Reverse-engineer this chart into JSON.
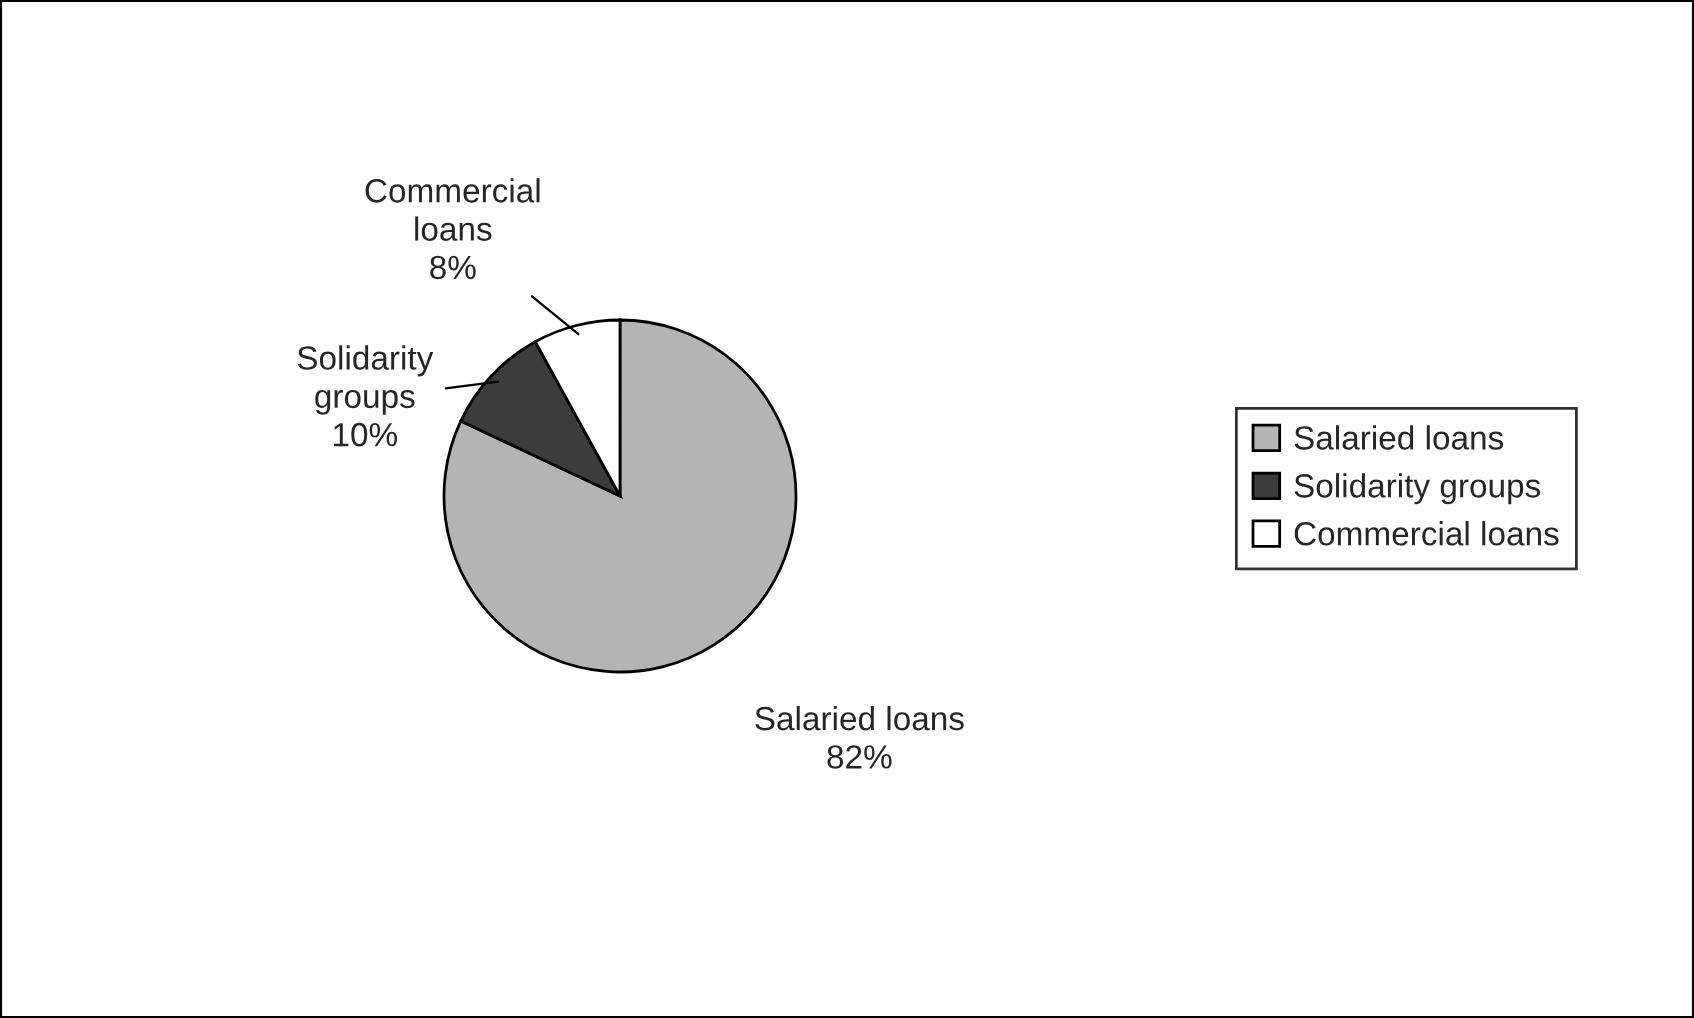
{
  "chart_data": {
    "type": "pie",
    "categories": [
      "Salaried loans",
      "Solidarity groups",
      "Commercial loans"
    ],
    "values": [
      82,
      10,
      8
    ],
    "value_labels": [
      "82%",
      "10%",
      "8%"
    ],
    "colors": [
      "#b4b4b4",
      "#3c3c3c",
      "#ffffff"
    ],
    "legend": "right"
  }
}
